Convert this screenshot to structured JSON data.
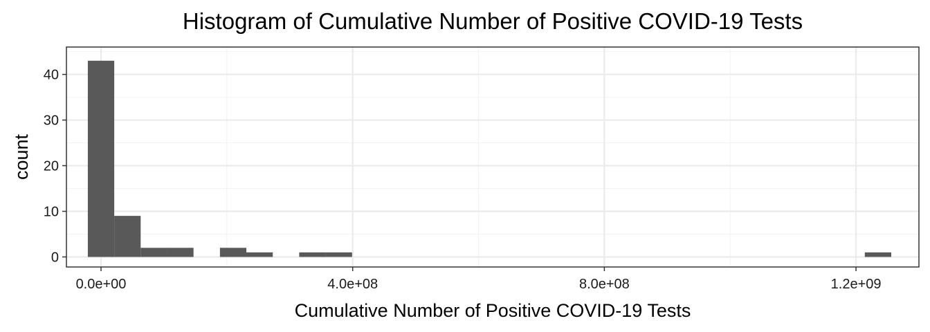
{
  "chart_data": {
    "type": "bar",
    "title": "Histogram of Cumulative Number of Positive COVID-19 Tests",
    "xlabel": "Cumulative Number of Positive COVID-19 Tests",
    "ylabel": "count",
    "xlim": [
      -55000000,
      1300000000
    ],
    "ylim": [
      -2.2,
      46
    ],
    "x_ticks": [
      0,
      400000000,
      800000000,
      1200000000
    ],
    "x_tick_labels": [
      "0.0e+00",
      "4.0e+08",
      "8.0e+08",
      "1.2e+09"
    ],
    "x_minor_ticks": [
      200000000,
      600000000,
      1000000000
    ],
    "y_ticks": [
      0,
      10,
      20,
      30,
      40
    ],
    "y_tick_labels": [
      "0",
      "10",
      "20",
      "30",
      "40"
    ],
    "y_minor_ticks": [
      5,
      15,
      25,
      35,
      45
    ],
    "grid": true,
    "bin_width": 42000000,
    "bins": [
      {
        "x": 0,
        "count": 43
      },
      {
        "x": 42000000,
        "count": 9
      },
      {
        "x": 84000000,
        "count": 2
      },
      {
        "x": 126000000,
        "count": 2
      },
      {
        "x": 168000000,
        "count": 0
      },
      {
        "x": 210000000,
        "count": 2
      },
      {
        "x": 252000000,
        "count": 1
      },
      {
        "x": 294000000,
        "count": 0
      },
      {
        "x": 336000000,
        "count": 1
      },
      {
        "x": 378000000,
        "count": 1
      },
      {
        "x": 1235000000,
        "count": 1
      }
    ],
    "colors": {
      "bar": "#595959",
      "panel_border": "#333333",
      "grid_major": "#ebebeb",
      "grid_minor": "#f2f2f2",
      "tick": "#333333"
    }
  }
}
